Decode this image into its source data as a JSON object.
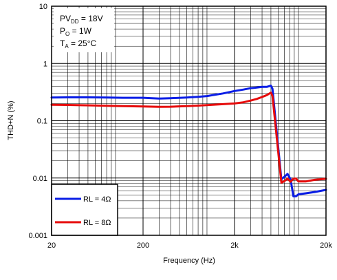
{
  "chart_data": {
    "type": "line",
    "xlabel": "Frequency (Hz)",
    "ylabel": "THD+N (%)",
    "x_scale": "log",
    "y_scale": "log",
    "xlim": [
      20,
      20000
    ],
    "ylim": [
      0.001,
      10
    ],
    "x_ticks": [
      {
        "value": 20,
        "label": "20"
      },
      {
        "value": 200,
        "label": "200"
      },
      {
        "value": 2000,
        "label": "2k"
      },
      {
        "value": 20000,
        "label": "20k"
      }
    ],
    "y_ticks": [
      {
        "value": 10,
        "label": "10"
      },
      {
        "value": 1,
        "label": "1"
      },
      {
        "value": 0.1,
        "label": "0.1"
      },
      {
        "value": 0.01,
        "label": "0.01"
      },
      {
        "value": 0.001,
        "label": "0.001"
      }
    ],
    "grid": true,
    "legend_position": "bottom-left",
    "annotation": {
      "line1_main": "PV",
      "line1_sub": "DD",
      "line1_rest": " = 18V",
      "line2_main": "P",
      "line2_sub": "O",
      "line2_rest": " = 1W",
      "line3_main": "T",
      "line3_sub": "A",
      "line3_rest": " = 25°C"
    },
    "series": [
      {
        "name": "RL = 4Ω",
        "color": "#0a1ee6",
        "x": [
          20,
          30,
          50,
          80,
          120,
          200,
          300,
          400,
          600,
          800,
          1000,
          1500,
          2000,
          2500,
          3000,
          3500,
          4000,
          4500,
          5000,
          5200,
          6500,
          7000,
          7600,
          8200,
          8800,
          9400,
          10000,
          12000,
          15000,
          20000
        ],
        "y": [
          0.255,
          0.256,
          0.256,
          0.255,
          0.252,
          0.252,
          0.244,
          0.248,
          0.255,
          0.262,
          0.27,
          0.3,
          0.33,
          0.35,
          0.37,
          0.38,
          0.39,
          0.39,
          0.41,
          0.36,
          0.0095,
          0.0105,
          0.0118,
          0.0095,
          0.0048,
          0.0048,
          0.0052,
          0.0054,
          0.0057,
          0.0062
        ]
      },
      {
        "name": "RL = 8Ω",
        "color": "#e60a0a",
        "x": [
          20,
          30,
          50,
          80,
          120,
          200,
          300,
          400,
          600,
          800,
          1000,
          1500,
          2000,
          2500,
          3000,
          3500,
          4000,
          4500,
          5000,
          5200,
          6500,
          7000,
          7600,
          8200,
          8800,
          9400,
          10000,
          12000,
          15000,
          20000
        ],
        "y": [
          0.19,
          0.189,
          0.186,
          0.182,
          0.18,
          0.178,
          0.175,
          0.176,
          0.18,
          0.184,
          0.188,
          0.195,
          0.2,
          0.21,
          0.225,
          0.24,
          0.26,
          0.28,
          0.31,
          0.27,
          0.0083,
          0.0088,
          0.0098,
          0.0086,
          0.0097,
          0.0098,
          0.0087,
          0.0087,
          0.0093,
          0.0097
        ]
      }
    ]
  }
}
